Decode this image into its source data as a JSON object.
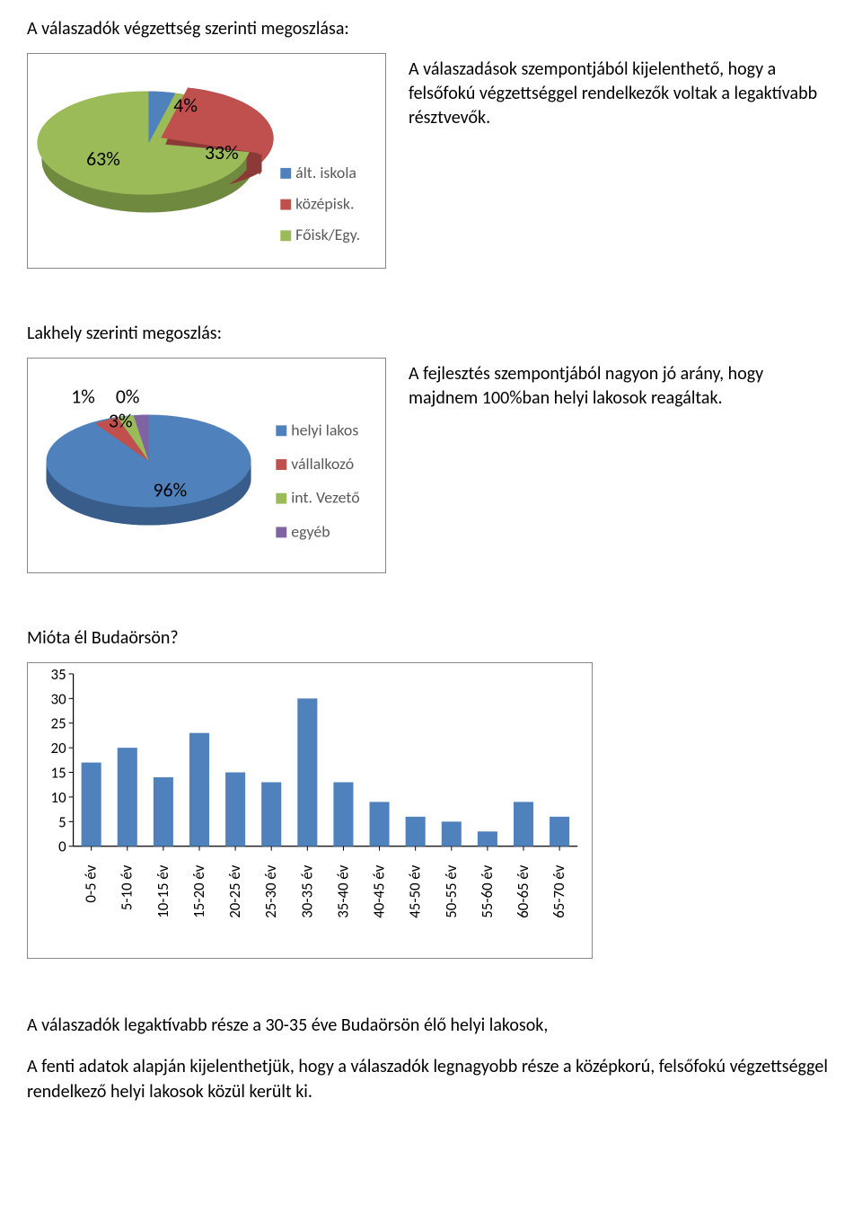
{
  "section1": {
    "title": "A válaszadók végzettség szerinti megoszlása:",
    "desc": "A válaszadások szempontjából kijelenthető, hogy a felsőfokú végzettséggel rendelkezők voltak a legaktívabb résztvevők.",
    "pie": {
      "type": "pie-3d",
      "slices": [
        {
          "label": "ált. iskola",
          "value": 4,
          "pct_label": "4%",
          "color": "#4f81bd",
          "legend_color": "#4f81bd"
        },
        {
          "label": "középisk.",
          "value": 33,
          "pct_label": "33%",
          "color": "#c0504d",
          "legend_color": "#c0504d"
        },
        {
          "label": "Főisk/Egy.",
          "value": 63,
          "pct_label": "63%",
          "color": "#9bbb59",
          "legend_color": "#9bbb59"
        }
      ],
      "label_fontsize": 22,
      "legend_fontsize": 18,
      "legend_text_color": "#595959",
      "background_color": "#ffffff",
      "border_color": "#878787",
      "exploded_index": 1
    }
  },
  "section2": {
    "title": "Lakhely szerinti megoszlás:",
    "desc": "A fejlesztés szempontjából nagyon jó arány, hogy majdnem 100%ban helyi lakosok reagáltak.",
    "pie": {
      "type": "pie-3d",
      "slices": [
        {
          "label": "helyi lakos",
          "value": 96,
          "pct_label": "96%",
          "color": "#4f81bd",
          "legend_color": "#4f81bd"
        },
        {
          "label": "vállalkozó",
          "value": 3,
          "pct_label": "3%",
          "color": "#c0504d",
          "legend_color": "#c0504d"
        },
        {
          "label": "int. Vezető",
          "value": 1,
          "pct_label": "1%",
          "color": "#9bbb59",
          "legend_color": "#9bbb59"
        },
        {
          "label": "egyéb",
          "value": 0,
          "pct_label": "0%",
          "color": "#8064a2",
          "legend_color": "#8064a2"
        }
      ],
      "label_fontsize": 22,
      "legend_fontsize": 18,
      "legend_text_color": "#595959",
      "background_color": "#ffffff",
      "border_color": "#878787"
    }
  },
  "section3": {
    "title": "Mióta él Budaörsön?",
    "bar": {
      "type": "bar",
      "categories": [
        "0-5 év",
        "5-10 év",
        "10-15 év",
        "15-20 év",
        "20-25 év",
        "25-30 év",
        "30-35 év",
        "35-40 év",
        "40-45 év",
        "45-50 év",
        "50-55 év",
        "55-60 év",
        "60-65 év",
        "65-70 év"
      ],
      "values": [
        17,
        20,
        14,
        23,
        15,
        13,
        30,
        13,
        9,
        6,
        5,
        3,
        9,
        6
      ],
      "bar_color": "#4f81bd",
      "axis_color": "#000000",
      "ylim": [
        0,
        35
      ],
      "ytick_step": 5,
      "yticks": [
        0,
        5,
        10,
        15,
        20,
        25,
        30,
        35
      ],
      "tick_mark_color": "#000000",
      "label_fontsize": 17,
      "background_color": "#ffffff",
      "border_color": "#878787",
      "bar_width_ratio": 0.55
    }
  },
  "footer": {
    "p1": "A válaszadók legaktívabb része a 30-35 éve Budaörsön élő helyi lakosok,",
    "p2": "A fenti adatok alapján kijelenthetjük, hogy a válaszadók legnagyobb része a középkorú, felsőfokú végzettséggel rendelkező helyi lakosok közül került ki."
  }
}
